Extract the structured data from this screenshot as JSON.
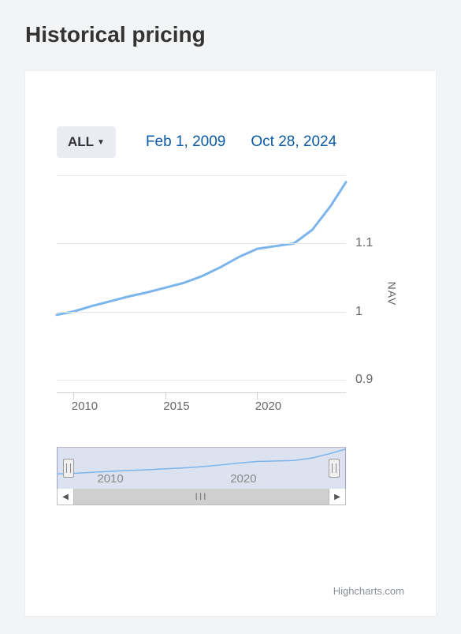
{
  "title": "Historical pricing",
  "controls": {
    "range_label": "ALL",
    "start_date": "Feb 1, 2009",
    "end_date": "Oct 28, 2024"
  },
  "chart": {
    "type": "line",
    "series_color": "#7cb5ec",
    "line_width": 3,
    "background_color": "#ffffff",
    "grid_color": "#e6e6e6",
    "axis_color": "#cfcfcf",
    "text_color": "#666666",
    "y_axis_title": "NAV",
    "ylim": [
      0.88,
      1.2
    ],
    "y_ticks": [
      0.9,
      1.0,
      1.1
    ],
    "y_tick_labels": [
      "0.9",
      "1",
      "1.1"
    ],
    "x_tick_years": [
      2010,
      2015,
      2020
    ],
    "x_tick_labels": [
      "2010",
      "2015",
      "2020"
    ],
    "x_range": [
      2009.08,
      2024.83
    ],
    "data_years": [
      2009.08,
      2010,
      2011,
      2012,
      2013,
      2014,
      2015,
      2016,
      2017,
      2018,
      2019,
      2020,
      2021,
      2022,
      2023,
      2024,
      2024.83
    ],
    "data_values": [
      0.995,
      1.0,
      1.008,
      1.015,
      1.022,
      1.028,
      1.035,
      1.042,
      1.052,
      1.065,
      1.08,
      1.092,
      1.096,
      1.1,
      1.12,
      1.155,
      1.19
    ]
  },
  "navigator": {
    "selection_color": "rgba(120,140,200,0.25)",
    "handle_fill": "#f0f0f0",
    "handle_border": "#9c9c9c",
    "line_color": "#7cb5ec",
    "tick_labels": [
      "2010",
      "2020"
    ],
    "left_arrow": "◀",
    "right_arrow": "▶",
    "grip": "III"
  },
  "credit": "Highcharts.com"
}
